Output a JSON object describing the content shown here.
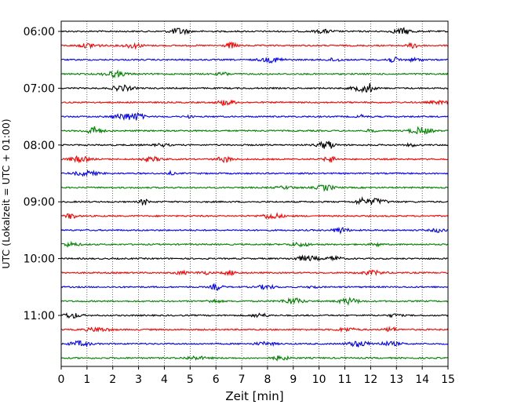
{
  "chart_data": {
    "type": "line",
    "title": "",
    "xlabel": "Zeit  [min]",
    "ylabel": "UTC (Lokalzeit = UTC + 01:00)",
    "xlim": [
      0,
      15
    ],
    "x_ticks": [
      "0",
      "1",
      "2",
      "3",
      "4",
      "5",
      "6",
      "7",
      "8",
      "9",
      "10",
      "11",
      "12",
      "13",
      "14",
      "15"
    ],
    "y_tick_labels": [
      "06:00",
      "07:00",
      "08:00",
      "09:00",
      "10:00",
      "11:00"
    ],
    "trace_interval_minutes": 15,
    "start_time": "06:00",
    "end_time": "11:45",
    "traces": [
      {
        "start": "06:00",
        "color": "#000000"
      },
      {
        "start": "06:15",
        "color": "#ff0000"
      },
      {
        "start": "06:30",
        "color": "#0000ff"
      },
      {
        "start": "06:45",
        "color": "#008000"
      },
      {
        "start": "07:00",
        "color": "#000000"
      },
      {
        "start": "07:15",
        "color": "#ff0000"
      },
      {
        "start": "07:30",
        "color": "#0000ff"
      },
      {
        "start": "07:45",
        "color": "#008000"
      },
      {
        "start": "08:00",
        "color": "#000000"
      },
      {
        "start": "08:15",
        "color": "#ff0000"
      },
      {
        "start": "08:30",
        "color": "#0000ff"
      },
      {
        "start": "08:45",
        "color": "#008000"
      },
      {
        "start": "09:00",
        "color": "#000000"
      },
      {
        "start": "09:15",
        "color": "#ff0000"
      },
      {
        "start": "09:30",
        "color": "#0000ff"
      },
      {
        "start": "09:45",
        "color": "#008000"
      },
      {
        "start": "10:00",
        "color": "#000000"
      },
      {
        "start": "10:15",
        "color": "#ff0000"
      },
      {
        "start": "10:30",
        "color": "#0000ff"
      },
      {
        "start": "10:45",
        "color": "#008000"
      },
      {
        "start": "11:00",
        "color": "#000000"
      },
      {
        "start": "11:15",
        "color": "#ff0000"
      },
      {
        "start": "11:30",
        "color": "#0000ff"
      },
      {
        "start": "11:45",
        "color": "#008000"
      }
    ],
    "vertical_grid": "dotted at each minute",
    "horizontal_grid": false,
    "legend": "none"
  }
}
